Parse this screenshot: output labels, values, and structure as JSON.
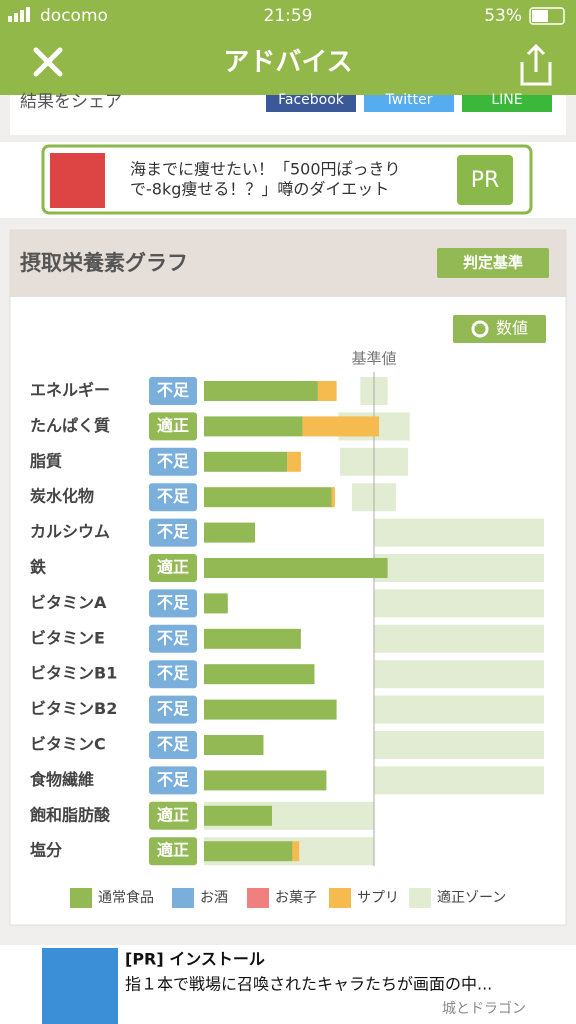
{
  "status_bar": {
    "carrier": "docomo",
    "time": "21:59",
    "battery": "53%"
  },
  "header": {
    "title": "アドバイス"
  },
  "share": {
    "label": "結果をシェア",
    "buttons": [
      "Facebook",
      "Twitter",
      "LINE"
    ]
  },
  "ad": {
    "text_line1": "海までに痩せたい！「500円ぽっきり",
    "text_line2": "で-8kg痩せる！？」噂のダイエット",
    "badge": "PR"
  },
  "chart_data": {
    "type": "bar",
    "title": "摂取栄養素グラフ",
    "criteria_button": "判定基準",
    "values_button": "数値",
    "reference_label": "基準値",
    "reference": 100,
    "xlim": [
      0,
      200
    ],
    "categories": [
      "エネルギー",
      "たんぱく質",
      "脂質",
      "炭水化物",
      "カルシウム",
      "鉄",
      "ビタミンA",
      "ビタミンE",
      "ビタミンB1",
      "ビタミンB2",
      "ビタミンC",
      "食物繊維",
      "飽和脂肪酸",
      "塩分"
    ],
    "status": [
      "不足",
      "適正",
      "不足",
      "不足",
      "不足",
      "適正",
      "不足",
      "不足",
      "不足",
      "不足",
      "不足",
      "不足",
      "適正",
      "適正"
    ],
    "status_colors": {
      "不足": "#7aaedb",
      "適正": "#93b955"
    },
    "series": [
      {
        "name": "通常食品",
        "color": "#93b955",
        "values": [
          67,
          58,
          49,
          75,
          30,
          108,
          14,
          57,
          65,
          78,
          35,
          72,
          40,
          52
        ]
      },
      {
        "name": "お酒",
        "color": "#7aaedb",
        "values": [
          0,
          0,
          0,
          0,
          0,
          0,
          0,
          0,
          0,
          0,
          0,
          0,
          0,
          0
        ]
      },
      {
        "name": "お菓子",
        "color": "#f08080",
        "values": [
          0,
          0,
          0,
          0,
          0,
          0,
          0,
          0,
          0,
          0,
          0,
          0,
          0,
          0
        ]
      },
      {
        "name": "サプリ",
        "color": "#f5bb4f",
        "values": [
          11,
          45,
          8,
          2,
          0,
          0,
          0,
          0,
          0,
          0,
          0,
          0,
          0,
          4
        ]
      }
    ],
    "zone": {
      "name": "適正ゾーン",
      "color": "#e2ecd2",
      "ranges": [
        [
          92,
          108
        ],
        [
          79,
          121
        ],
        [
          80,
          120
        ],
        [
          87,
          113
        ],
        [
          100,
          200
        ],
        [
          100,
          200
        ],
        [
          100,
          200
        ],
        [
          100,
          200
        ],
        [
          100,
          200
        ],
        [
          100,
          200
        ],
        [
          100,
          200
        ],
        [
          100,
          200
        ],
        [
          0,
          100
        ],
        [
          0,
          100
        ]
      ]
    }
  },
  "bottom_ad": {
    "title": "[PR] インストール",
    "text": "指１本で戦場に召喚されたキャラたちが画面の中...",
    "brand": "城とドラゴン"
  }
}
